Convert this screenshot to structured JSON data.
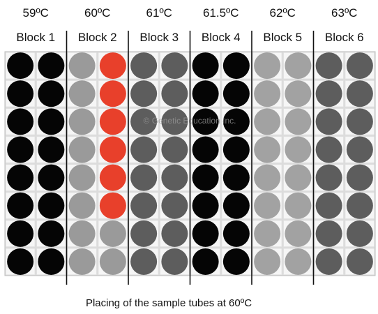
{
  "blocks": [
    {
      "temperature": "59ºC",
      "label": "Block 1",
      "columns": [
        "black",
        "black"
      ]
    },
    {
      "temperature": "60ºC",
      "label": "Block 2",
      "columns": [
        "gray",
        "red-partial"
      ]
    },
    {
      "temperature": "61ºC",
      "label": "Block 3",
      "columns": [
        "dark",
        "dark"
      ]
    },
    {
      "temperature": "61.5ºC",
      "label": "Block 4",
      "columns": [
        "black",
        "black"
      ]
    },
    {
      "temperature": "62ºC",
      "label": "Block 5",
      "columns": [
        "light",
        "light"
      ]
    },
    {
      "temperature": "63ºC",
      "label": "Block 6",
      "columns": [
        "dark",
        "dark"
      ]
    }
  ],
  "rows": 8,
  "red_tube_rows": 6,
  "colors": {
    "black": "#050505",
    "gray": "#9a9a9a",
    "dark": "#5d5d5d",
    "light": "#a2a2a2",
    "red": "#e8402b",
    "plate_bg": "#dcdcdc",
    "grid_line": "#ffffff",
    "divider": "#111111"
  },
  "watermark": "© Genetic Education Inc.",
  "caption": "Placing of the sample tubes at 60ºC"
}
